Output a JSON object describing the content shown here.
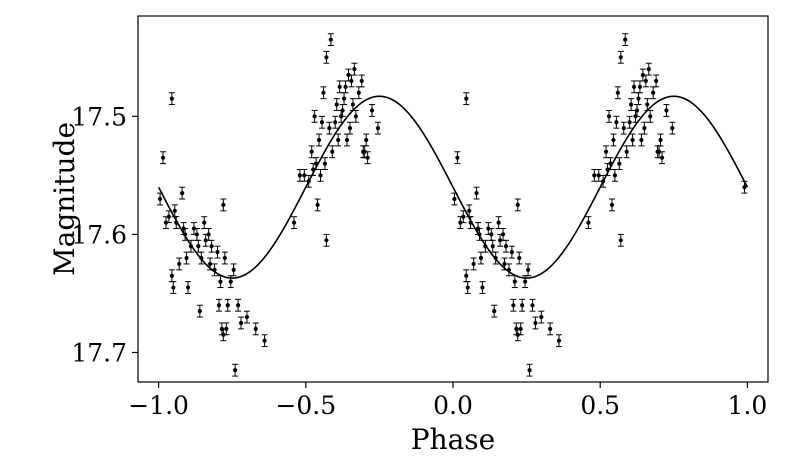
{
  "chart_data": {
    "type": "scatter",
    "title": "",
    "xlabel": "Phase",
    "ylabel": "Magnitude",
    "xlim": [
      -1.07,
      1.07
    ],
    "ylim": [
      17.725,
      17.415
    ],
    "y_inverted": true,
    "xticks": [
      -1.0,
      -0.5,
      0.0,
      0.5,
      1.0
    ],
    "xtick_labels": [
      "−1.0",
      "−0.5",
      "0.0",
      "0.5",
      "1.0"
    ],
    "yticks": [
      17.5,
      17.6,
      17.7
    ],
    "ytick_labels": [
      "17.5",
      "17.6",
      "17.7"
    ],
    "grid": false,
    "legend": "none",
    "error_bar": 0.005,
    "model_curve": {
      "mean": 17.56,
      "amplitude": 0.077,
      "max_phase": 0.75,
      "period": 1.0
    },
    "points": [
      {
        "x": -0.995,
        "y": 17.57
      },
      {
        "x": -0.985,
        "y": 17.535
      },
      {
        "x": -0.975,
        "y": 17.59
      },
      {
        "x": -0.965,
        "y": 17.585
      },
      {
        "x": -0.955,
        "y": 17.485
      },
      {
        "x": -0.955,
        "y": 17.635
      },
      {
        "x": -0.95,
        "y": 17.645
      },
      {
        "x": -0.945,
        "y": 17.58
      },
      {
        "x": -0.94,
        "y": 17.59
      },
      {
        "x": -0.93,
        "y": 17.625
      },
      {
        "x": -0.92,
        "y": 17.565
      },
      {
        "x": -0.915,
        "y": 17.595
      },
      {
        "x": -0.91,
        "y": 17.6
      },
      {
        "x": -0.905,
        "y": 17.62
      },
      {
        "x": -0.9,
        "y": 17.645
      },
      {
        "x": -0.89,
        "y": 17.61
      },
      {
        "x": -0.88,
        "y": 17.595
      },
      {
        "x": -0.87,
        "y": 17.6
      },
      {
        "x": -0.865,
        "y": 17.61
      },
      {
        "x": -0.86,
        "y": 17.665
      },
      {
        "x": -0.855,
        "y": 17.62
      },
      {
        "x": -0.845,
        "y": 17.59
      },
      {
        "x": -0.84,
        "y": 17.605
      },
      {
        "x": -0.83,
        "y": 17.6
      },
      {
        "x": -0.825,
        "y": 17.625
      },
      {
        "x": -0.82,
        "y": 17.61
      },
      {
        "x": -0.81,
        "y": 17.63
      },
      {
        "x": -0.8,
        "y": 17.615
      },
      {
        "x": -0.795,
        "y": 17.66
      },
      {
        "x": -0.79,
        "y": 17.64
      },
      {
        "x": -0.785,
        "y": 17.68
      },
      {
        "x": -0.78,
        "y": 17.685
      },
      {
        "x": -0.78,
        "y": 17.575
      },
      {
        "x": -0.775,
        "y": 17.62
      },
      {
        "x": -0.77,
        "y": 17.68
      },
      {
        "x": -0.765,
        "y": 17.66
      },
      {
        "x": -0.755,
        "y": 17.64
      },
      {
        "x": -0.745,
        "y": 17.63
      },
      {
        "x": -0.74,
        "y": 17.715
      },
      {
        "x": -0.73,
        "y": 17.66
      },
      {
        "x": -0.72,
        "y": 17.675
      },
      {
        "x": -0.7,
        "y": 17.67
      },
      {
        "x": -0.67,
        "y": 17.68
      },
      {
        "x": -0.64,
        "y": 17.69
      },
      {
        "x": -0.54,
        "y": 17.59
      },
      {
        "x": -0.52,
        "y": 17.55
      },
      {
        "x": -0.505,
        "y": 17.55
      },
      {
        "x": -0.49,
        "y": 17.555
      },
      {
        "x": -0.48,
        "y": 17.53
      },
      {
        "x": -0.475,
        "y": 17.545
      },
      {
        "x": -0.47,
        "y": 17.5
      },
      {
        "x": -0.465,
        "y": 17.54
      },
      {
        "x": -0.46,
        "y": 17.575
      },
      {
        "x": -0.455,
        "y": 17.52
      },
      {
        "x": -0.45,
        "y": 17.55
      },
      {
        "x": -0.445,
        "y": 17.505
      },
      {
        "x": -0.44,
        "y": 17.48
      },
      {
        "x": -0.435,
        "y": 17.54
      },
      {
        "x": -0.43,
        "y": 17.45
      },
      {
        "x": -0.43,
        "y": 17.605
      },
      {
        "x": -0.42,
        "y": 17.51
      },
      {
        "x": -0.415,
        "y": 17.435
      },
      {
        "x": -0.41,
        "y": 17.53
      },
      {
        "x": -0.4,
        "y": 17.505
      },
      {
        "x": -0.395,
        "y": 17.49
      },
      {
        "x": -0.39,
        "y": 17.52
      },
      {
        "x": -0.385,
        "y": 17.475
      },
      {
        "x": -0.38,
        "y": 17.5
      },
      {
        "x": -0.375,
        "y": 17.495
      },
      {
        "x": -0.37,
        "y": 17.485
      },
      {
        "x": -0.365,
        "y": 17.475
      },
      {
        "x": -0.36,
        "y": 17.52
      },
      {
        "x": -0.355,
        "y": 17.465
      },
      {
        "x": -0.35,
        "y": 17.51
      },
      {
        "x": -0.345,
        "y": 17.47
      },
      {
        "x": -0.34,
        "y": 17.49
      },
      {
        "x": -0.335,
        "y": 17.46
      },
      {
        "x": -0.33,
        "y": 17.5
      },
      {
        "x": -0.32,
        "y": 17.48
      },
      {
        "x": -0.31,
        "y": 17.47
      },
      {
        "x": -0.305,
        "y": 17.53
      },
      {
        "x": -0.3,
        "y": 17.53
      },
      {
        "x": -0.295,
        "y": 17.52
      },
      {
        "x": -0.29,
        "y": 17.535
      },
      {
        "x": -0.275,
        "y": 17.495
      },
      {
        "x": -0.255,
        "y": 17.51
      },
      {
        "x": 0.005,
        "y": 17.57
      },
      {
        "x": 0.015,
        "y": 17.535
      },
      {
        "x": 0.025,
        "y": 17.59
      },
      {
        "x": 0.035,
        "y": 17.585
      },
      {
        "x": 0.045,
        "y": 17.485
      },
      {
        "x": 0.045,
        "y": 17.635
      },
      {
        "x": 0.05,
        "y": 17.645
      },
      {
        "x": 0.055,
        "y": 17.58
      },
      {
        "x": 0.06,
        "y": 17.59
      },
      {
        "x": 0.07,
        "y": 17.625
      },
      {
        "x": 0.08,
        "y": 17.565
      },
      {
        "x": 0.085,
        "y": 17.595
      },
      {
        "x": 0.09,
        "y": 17.6
      },
      {
        "x": 0.095,
        "y": 17.62
      },
      {
        "x": 0.1,
        "y": 17.645
      },
      {
        "x": 0.11,
        "y": 17.61
      },
      {
        "x": 0.12,
        "y": 17.595
      },
      {
        "x": 0.13,
        "y": 17.6
      },
      {
        "x": 0.135,
        "y": 17.61
      },
      {
        "x": 0.14,
        "y": 17.665
      },
      {
        "x": 0.145,
        "y": 17.62
      },
      {
        "x": 0.155,
        "y": 17.59
      },
      {
        "x": 0.16,
        "y": 17.605
      },
      {
        "x": 0.17,
        "y": 17.6
      },
      {
        "x": 0.175,
        "y": 17.625
      },
      {
        "x": 0.18,
        "y": 17.61
      },
      {
        "x": 0.19,
        "y": 17.63
      },
      {
        "x": 0.2,
        "y": 17.615
      },
      {
        "x": 0.205,
        "y": 17.66
      },
      {
        "x": 0.21,
        "y": 17.64
      },
      {
        "x": 0.215,
        "y": 17.68
      },
      {
        "x": 0.22,
        "y": 17.685
      },
      {
        "x": 0.22,
        "y": 17.575
      },
      {
        "x": 0.225,
        "y": 17.62
      },
      {
        "x": 0.23,
        "y": 17.68
      },
      {
        "x": 0.235,
        "y": 17.66
      },
      {
        "x": 0.245,
        "y": 17.64
      },
      {
        "x": 0.255,
        "y": 17.63
      },
      {
        "x": 0.26,
        "y": 17.715
      },
      {
        "x": 0.27,
        "y": 17.66
      },
      {
        "x": 0.28,
        "y": 17.675
      },
      {
        "x": 0.3,
        "y": 17.67
      },
      {
        "x": 0.33,
        "y": 17.68
      },
      {
        "x": 0.36,
        "y": 17.69
      },
      {
        "x": 0.46,
        "y": 17.59
      },
      {
        "x": 0.48,
        "y": 17.55
      },
      {
        "x": 0.495,
        "y": 17.55
      },
      {
        "x": 0.51,
        "y": 17.555
      },
      {
        "x": 0.52,
        "y": 17.53
      },
      {
        "x": 0.525,
        "y": 17.545
      },
      {
        "x": 0.53,
        "y": 17.5
      },
      {
        "x": 0.535,
        "y": 17.54
      },
      {
        "x": 0.54,
        "y": 17.575
      },
      {
        "x": 0.545,
        "y": 17.52
      },
      {
        "x": 0.55,
        "y": 17.55
      },
      {
        "x": 0.555,
        "y": 17.505
      },
      {
        "x": 0.56,
        "y": 17.48
      },
      {
        "x": 0.565,
        "y": 17.54
      },
      {
        "x": 0.57,
        "y": 17.45
      },
      {
        "x": 0.57,
        "y": 17.605
      },
      {
        "x": 0.58,
        "y": 17.51
      },
      {
        "x": 0.585,
        "y": 17.435
      },
      {
        "x": 0.59,
        "y": 17.53
      },
      {
        "x": 0.6,
        "y": 17.505
      },
      {
        "x": 0.605,
        "y": 17.49
      },
      {
        "x": 0.61,
        "y": 17.52
      },
      {
        "x": 0.615,
        "y": 17.475
      },
      {
        "x": 0.62,
        "y": 17.5
      },
      {
        "x": 0.625,
        "y": 17.495
      },
      {
        "x": 0.63,
        "y": 17.485
      },
      {
        "x": 0.635,
        "y": 17.475
      },
      {
        "x": 0.64,
        "y": 17.52
      },
      {
        "x": 0.645,
        "y": 17.465
      },
      {
        "x": 0.65,
        "y": 17.51
      },
      {
        "x": 0.655,
        "y": 17.47
      },
      {
        "x": 0.66,
        "y": 17.49
      },
      {
        "x": 0.665,
        "y": 17.46
      },
      {
        "x": 0.67,
        "y": 17.5
      },
      {
        "x": 0.68,
        "y": 17.48
      },
      {
        "x": 0.69,
        "y": 17.47
      },
      {
        "x": 0.695,
        "y": 17.53
      },
      {
        "x": 0.7,
        "y": 17.53
      },
      {
        "x": 0.705,
        "y": 17.52
      },
      {
        "x": 0.71,
        "y": 17.535
      },
      {
        "x": 0.725,
        "y": 17.495
      },
      {
        "x": 0.745,
        "y": 17.51
      },
      {
        "x": 0.99,
        "y": 17.56
      }
    ]
  }
}
